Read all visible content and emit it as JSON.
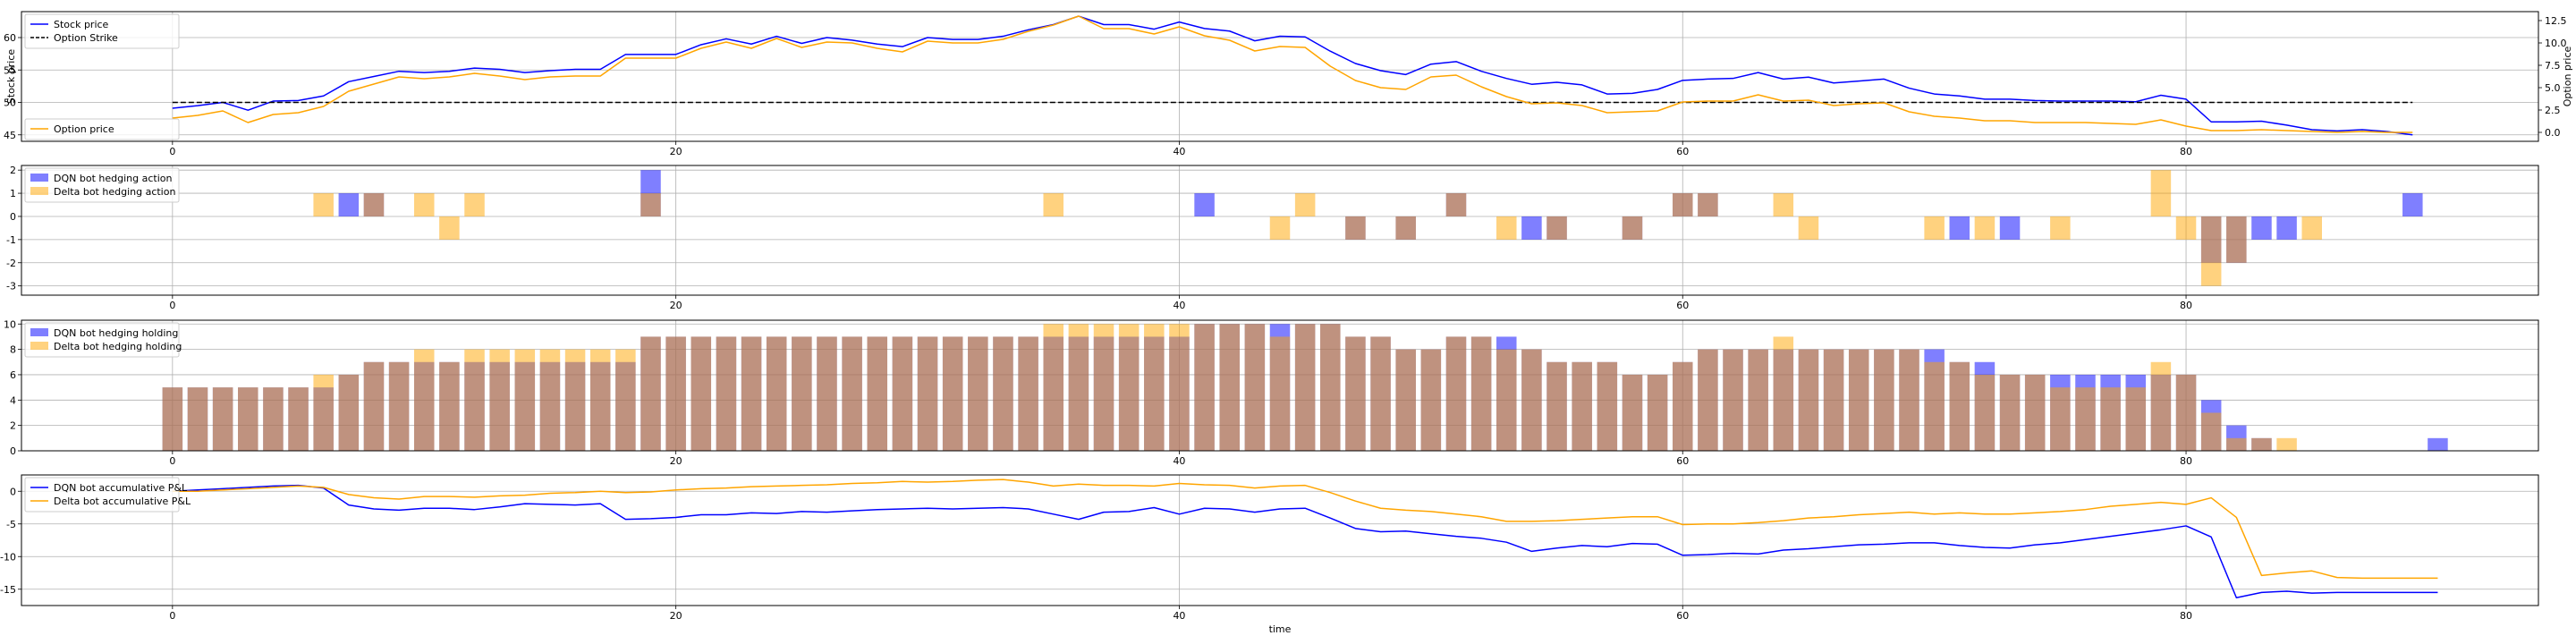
{
  "chart_data": [
    {
      "type": "line",
      "xlabel": "",
      "ylabel": "Stock price",
      "ylabel_right": "Option price",
      "xlim": [
        -6,
        94
      ],
      "ylim": [
        44,
        64
      ],
      "ylim_right": [
        -1,
        13.5
      ],
      "xticks": [
        0,
        20,
        40,
        60,
        80
      ],
      "yticks": [
        45,
        50,
        55,
        60
      ],
      "yticks_right": [
        0.0,
        2.5,
        5.0,
        7.5,
        10.0,
        12.5
      ],
      "grid": true,
      "legend_upper": [
        "Stock price",
        "Option Strike"
      ],
      "legend_lower": [
        "Option price"
      ],
      "legend_placement": "upper-left and lower-left",
      "series": [
        {
          "name": "Stock price",
          "color": "#0000ff",
          "axis": "left",
          "values": [
            49.1,
            49.5,
            50.0,
            48.8,
            50.2,
            50.3,
            51.0,
            53.2,
            54.0,
            54.8,
            54.6,
            54.8,
            55.3,
            55.1,
            54.6,
            54.9,
            55.1,
            55.1,
            57.4,
            57.4,
            57.4,
            58.9,
            59.8,
            59.0,
            60.2,
            59.1,
            60.0,
            59.6,
            59.0,
            58.6,
            60.0,
            59.7,
            59.7,
            60.2,
            61.2,
            62.0,
            63.3,
            62.0,
            62.0,
            61.3,
            62.4,
            61.4,
            61.0,
            59.5,
            60.2,
            60.1,
            57.9,
            56.0,
            54.9,
            54.3,
            55.9,
            56.3,
            54.8,
            53.7,
            52.8,
            53.1,
            52.7,
            51.3,
            51.4,
            52.0,
            53.4,
            53.6,
            53.7,
            54.6,
            53.6,
            53.9,
            53.0,
            53.3,
            53.6,
            52.2,
            51.3,
            51.0,
            50.5,
            50.5,
            50.3,
            50.2,
            50.2,
            50.2,
            50.1,
            51.1,
            50.5,
            47.0,
            47.0,
            47.1,
            46.5,
            45.8,
            45.6,
            45.8,
            45.5,
            45.0
          ]
        },
        {
          "name": "Option Strike",
          "color": "#000000",
          "axis": "left",
          "dashed": true,
          "x": [
            0,
            89
          ],
          "values": [
            50,
            50
          ]
        },
        {
          "name": "Option price",
          "color": "#ffa500",
          "axis": "right",
          "values": [
            1.6,
            1.9,
            2.4,
            1.1,
            2.0,
            2.2,
            2.9,
            4.6,
            5.4,
            6.2,
            6.0,
            6.2,
            6.6,
            6.3,
            5.9,
            6.2,
            6.3,
            6.3,
            8.3,
            8.3,
            8.3,
            9.4,
            10.1,
            9.4,
            10.5,
            9.5,
            10.1,
            10.0,
            9.4,
            9.0,
            10.2,
            10.0,
            10.0,
            10.4,
            11.3,
            12.0,
            13.0,
            11.6,
            11.6,
            11.0,
            11.8,
            10.8,
            10.3,
            9.1,
            9.6,
            9.5,
            7.4,
            5.8,
            5.0,
            4.8,
            6.2,
            6.4,
            5.1,
            4.0,
            3.2,
            3.3,
            3.0,
            2.2,
            2.3,
            2.4,
            3.4,
            3.5,
            3.5,
            4.2,
            3.5,
            3.6,
            3.0,
            3.2,
            3.3,
            2.3,
            1.8,
            1.6,
            1.3,
            1.3,
            1.1,
            1.1,
            1.1,
            1.0,
            0.9,
            1.4,
            0.7,
            0.2,
            0.2,
            0.3,
            0.2,
            0.1,
            0.0,
            0.1,
            0.0,
            0.0
          ]
        }
      ]
    },
    {
      "type": "bar",
      "xlim": [
        -6,
        94
      ],
      "ylim": [
        -3.4,
        2.2
      ],
      "xticks": [
        0,
        20,
        40,
        60,
        80
      ],
      "yticks": [
        -3,
        -2,
        -1,
        0,
        1,
        2
      ],
      "grid": true,
      "legend_placement": "upper-left",
      "series": [
        {
          "name": "DQN bot hedging action",
          "color": "#0000ff",
          "alpha": 0.5,
          "points": [
            [
              7,
              1
            ],
            [
              8,
              1
            ],
            [
              19,
              2
            ],
            [
              41,
              1
            ],
            [
              47,
              -1
            ],
            [
              49,
              -1
            ],
            [
              51,
              1
            ],
            [
              54,
              -1
            ],
            [
              55,
              -1
            ],
            [
              58,
              -1
            ],
            [
              60,
              1
            ],
            [
              61,
              1
            ],
            [
              71,
              -1
            ],
            [
              73,
              -1
            ],
            [
              81,
              -2
            ],
            [
              82,
              -2
            ],
            [
              83,
              -1
            ],
            [
              84,
              -1
            ],
            [
              89,
              1
            ]
          ]
        },
        {
          "name": "Delta bot hedging action",
          "color": "#ffa500",
          "alpha": 0.5,
          "points": [
            [
              6,
              1
            ],
            [
              8,
              1
            ],
            [
              10,
              1
            ],
            [
              11,
              -1
            ],
            [
              12,
              1
            ],
            [
              19,
              1
            ],
            [
              35,
              1
            ],
            [
              44,
              -1
            ],
            [
              45,
              1
            ],
            [
              47,
              -1
            ],
            [
              49,
              -1
            ],
            [
              51,
              1
            ],
            [
              53,
              -1
            ],
            [
              55,
              -1
            ],
            [
              58,
              -1
            ],
            [
              60,
              1
            ],
            [
              61,
              1
            ],
            [
              64,
              1
            ],
            [
              65,
              -1
            ],
            [
              70,
              -1
            ],
            [
              72,
              -1
            ],
            [
              75,
              -1
            ],
            [
              79,
              2
            ],
            [
              80,
              -1
            ],
            [
              81,
              -3
            ],
            [
              82,
              -2
            ],
            [
              85,
              -1
            ]
          ]
        }
      ]
    },
    {
      "type": "bar",
      "xlim": [
        -6,
        94
      ],
      "ylim": [
        0,
        10.3
      ],
      "xticks": [
        0,
        20,
        40,
        60,
        80
      ],
      "yticks": [
        0,
        2,
        4,
        6,
        8,
        10
      ],
      "grid": true,
      "legend_placement": "upper-left",
      "series": [
        {
          "name": "DQN bot hedging holding",
          "color": "#0000ff",
          "alpha": 0.5,
          "values": [
            5,
            5,
            5,
            5,
            5,
            5,
            5,
            6,
            7,
            7,
            7,
            7,
            7,
            7,
            7,
            7,
            7,
            7,
            7,
            9,
            9,
            9,
            9,
            9,
            9,
            9,
            9,
            9,
            9,
            9,
            9,
            9,
            9,
            9,
            9,
            9,
            9,
            9,
            9,
            9,
            9,
            10,
            10,
            10,
            10,
            10,
            10,
            9,
            9,
            8,
            8,
            9,
            9,
            9,
            8,
            7,
            7,
            7,
            6,
            6,
            7,
            8,
            8,
            8,
            8,
            8,
            8,
            8,
            8,
            8,
            8,
            7,
            7,
            6,
            6,
            6,
            6,
            6,
            6,
            6,
            6,
            4,
            2,
            1,
            0,
            0,
            0,
            0,
            0,
            0,
            1
          ]
        },
        {
          "name": "Delta bot hedging holding",
          "color": "#ffa500",
          "alpha": 0.5,
          "values": [
            5,
            5,
            5,
            5,
            5,
            5,
            6,
            6,
            7,
            7,
            8,
            7,
            8,
            8,
            8,
            8,
            8,
            8,
            8,
            9,
            9,
            9,
            9,
            9,
            9,
            9,
            9,
            9,
            9,
            9,
            9,
            9,
            9,
            9,
            9,
            10,
            10,
            10,
            10,
            10,
            10,
            10,
            10,
            10,
            9,
            10,
            10,
            9,
            9,
            8,
            8,
            9,
            9,
            8,
            8,
            7,
            7,
            7,
            6,
            6,
            7,
            8,
            8,
            8,
            9,
            8,
            8,
            8,
            8,
            8,
            7,
            7,
            6,
            6,
            6,
            5,
            5,
            5,
            5,
            7,
            6,
            3,
            1,
            1,
            1,
            0,
            0,
            0,
            0,
            0,
            0
          ]
        }
      ]
    },
    {
      "type": "line",
      "xlabel": "time",
      "xlim": [
        -6,
        94
      ],
      "ylim": [
        -17.5,
        2.5
      ],
      "xticks": [
        0,
        20,
        40,
        60,
        80
      ],
      "yticks": [
        0,
        -5,
        -10,
        -15
      ],
      "grid": true,
      "legend_placement": "upper-left",
      "series": [
        {
          "name": "DQN bot accumulative P&L",
          "color": "#0000ff",
          "values": [
            0.0,
            0.2,
            0.4,
            0.6,
            0.8,
            0.9,
            0.5,
            -2.1,
            -2.7,
            -2.9,
            -2.6,
            -2.6,
            -2.8,
            -2.4,
            -1.9,
            -2.0,
            -2.1,
            -1.9,
            -4.3,
            -4.2,
            -4.0,
            -3.6,
            -3.6,
            -3.3,
            -3.4,
            -3.1,
            -3.2,
            -3.0,
            -2.8,
            -2.7,
            -2.6,
            -2.7,
            -2.6,
            -2.5,
            -2.7,
            -3.5,
            -4.3,
            -3.2,
            -3.1,
            -2.5,
            -3.5,
            -2.6,
            -2.7,
            -3.2,
            -2.7,
            -2.6,
            -4.1,
            -5.7,
            -6.2,
            -6.1,
            -6.5,
            -6.9,
            -7.2,
            -7.8,
            -9.2,
            -8.7,
            -8.3,
            -8.5,
            -8.0,
            -8.1,
            -9.8,
            -9.7,
            -9.5,
            -9.6,
            -9.0,
            -8.8,
            -8.5,
            -8.2,
            -8.1,
            -7.9,
            -7.9,
            -8.3,
            -8.6,
            -8.7,
            -8.2,
            -7.9,
            -7.4,
            -6.9,
            -6.4,
            -5.9,
            -5.3,
            -7.0,
            -16.3,
            -15.5,
            -15.3,
            -15.6,
            -15.5,
            -15.5,
            -15.5,
            -15.5,
            -15.5
          ]
        },
        {
          "name": "Delta bot accumulative P&L",
          "color": "#ffa500",
          "values": [
            0.0,
            0.0,
            0.2,
            0.4,
            0.6,
            0.8,
            0.6,
            -0.5,
            -1.0,
            -1.2,
            -0.8,
            -0.8,
            -0.9,
            -0.7,
            -0.6,
            -0.3,
            -0.2,
            0.0,
            -0.2,
            -0.1,
            0.2,
            0.4,
            0.5,
            0.7,
            0.8,
            0.9,
            1.0,
            1.2,
            1.3,
            1.5,
            1.4,
            1.5,
            1.7,
            1.8,
            1.4,
            0.8,
            1.1,
            0.9,
            0.9,
            0.8,
            1.2,
            1.0,
            0.9,
            0.5,
            0.8,
            0.9,
            -0.2,
            -1.5,
            -2.6,
            -2.9,
            -3.1,
            -3.5,
            -3.9,
            -4.6,
            -4.6,
            -4.5,
            -4.3,
            -4.1,
            -3.9,
            -3.9,
            -5.1,
            -5.0,
            -5.0,
            -4.8,
            -4.5,
            -4.1,
            -3.9,
            -3.6,
            -3.4,
            -3.2,
            -3.5,
            -3.3,
            -3.5,
            -3.5,
            -3.3,
            -3.1,
            -2.8,
            -2.3,
            -2.0,
            -1.7,
            -2.0,
            -1.0,
            -4.0,
            -12.9,
            -12.5,
            -12.2,
            -13.2,
            -13.3,
            -13.3,
            -13.3,
            -13.3
          ]
        }
      ]
    }
  ]
}
